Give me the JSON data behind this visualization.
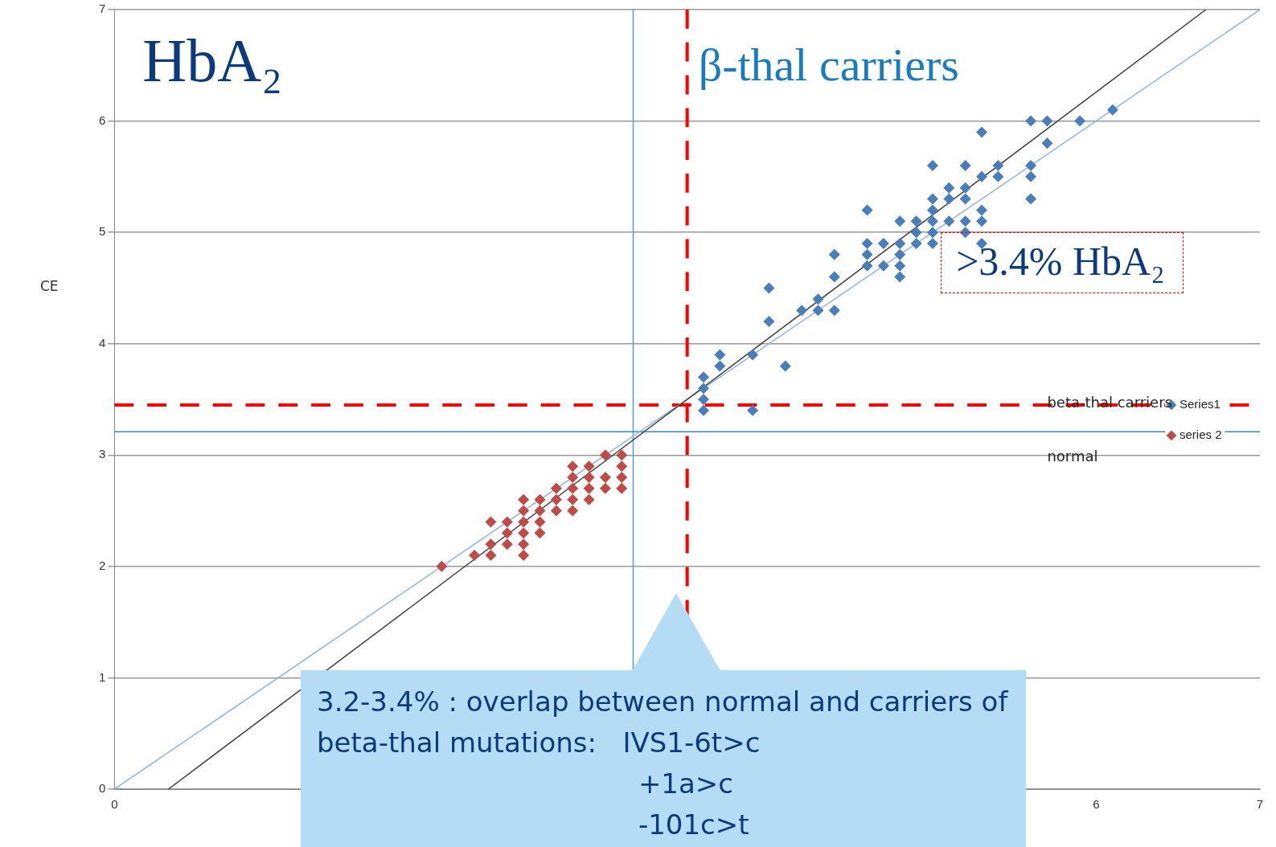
{
  "chart_data": {
    "type": "scatter",
    "title": "HbA₂",
    "ylabel": "CE",
    "xlim": [
      0,
      7
    ],
    "ylim": [
      0,
      7
    ],
    "xticks": [
      0,
      6,
      7
    ],
    "yticks": [
      0,
      1,
      2,
      3,
      4,
      5,
      6,
      7
    ],
    "grid": "y",
    "legend": "right",
    "marker": "diamond",
    "series": [
      {
        "name": "Series1",
        "color": "#4a7ebb",
        "x": [
          3.6,
          3.6,
          3.6,
          3.6,
          3.7,
          3.7,
          3.9,
          3.9,
          4.0,
          4.0,
          4.1,
          4.2,
          4.3,
          4.3,
          4.4,
          4.4,
          4.4,
          4.6,
          4.6,
          4.6,
          4.6,
          4.7,
          4.7,
          4.8,
          4.8,
          4.8,
          4.8,
          4.8,
          4.9,
          4.9,
          4.9,
          5.0,
          5.0,
          5.0,
          5.0,
          5.0,
          5.0,
          5.1,
          5.1,
          5.1,
          5.2,
          5.2,
          5.2,
          5.2,
          5.2,
          5.3,
          5.3,
          5.3,
          5.3,
          5.3,
          5.4,
          5.4,
          5.6,
          5.6,
          5.6,
          5.6,
          5.7,
          5.7,
          5.9,
          6.1
        ],
        "values": [
          3.4,
          3.5,
          3.6,
          3.7,
          3.8,
          3.9,
          3.4,
          3.9,
          4.2,
          4.5,
          3.8,
          4.3,
          4.3,
          4.4,
          4.3,
          4.6,
          4.8,
          4.7,
          4.8,
          4.9,
          5.2,
          4.7,
          4.9,
          4.6,
          4.7,
          4.8,
          4.9,
          5.1,
          4.9,
          5.0,
          5.1,
          4.9,
          5.0,
          5.1,
          5.2,
          5.3,
          5.6,
          5.1,
          5.3,
          5.4,
          5.0,
          5.1,
          5.3,
          5.4,
          5.6,
          4.9,
          5.1,
          5.2,
          5.5,
          5.9,
          5.5,
          5.6,
          5.3,
          5.5,
          5.6,
          6.0,
          5.8,
          6.0,
          6.0,
          6.1
        ]
      },
      {
        "name": "series 2",
        "color": "#be4b48",
        "x": [
          2.0,
          2.2,
          2.3,
          2.3,
          2.3,
          2.4,
          2.4,
          2.4,
          2.5,
          2.5,
          2.5,
          2.5,
          2.5,
          2.5,
          2.6,
          2.6,
          2.6,
          2.6,
          2.7,
          2.7,
          2.7,
          2.8,
          2.8,
          2.8,
          2.8,
          2.8,
          2.9,
          2.9,
          2.9,
          2.9,
          3.0,
          3.0,
          3.0,
          3.1,
          3.1,
          3.1,
          3.1
        ],
        "values": [
          2.0,
          2.1,
          2.1,
          2.2,
          2.4,
          2.2,
          2.3,
          2.4,
          2.1,
          2.2,
          2.3,
          2.4,
          2.5,
          2.6,
          2.3,
          2.4,
          2.5,
          2.6,
          2.5,
          2.6,
          2.7,
          2.5,
          2.6,
          2.7,
          2.8,
          2.9,
          2.6,
          2.7,
          2.8,
          2.9,
          2.7,
          2.8,
          3.0,
          2.7,
          2.8,
          2.9,
          3.0
        ]
      },
      {
        "type": "line",
        "color": "#404040",
        "marker": "none",
        "x": [
          0.33,
          6.67
        ],
        "values": [
          0,
          7
        ]
      },
      {
        "type": "line",
        "color": "#8fb4e0",
        "marker": "none",
        "x": [
          0,
          7
        ],
        "values": [
          0,
          7
        ]
      }
    ],
    "ref_lines": [
      {
        "axis": "x",
        "value": 3.5,
        "color": "#ff0000",
        "line_style": "dashed"
      },
      {
        "axis": "y",
        "value": 3.45,
        "color": "#ff0000",
        "line_style": "dashed"
      },
      {
        "axis": "x",
        "value": 3.17,
        "color": "#5b9bd5",
        "line_style": "solid"
      },
      {
        "axis": "y",
        "value": 3.21,
        "color": "#2e8bd0",
        "line_style": "solid"
      }
    ],
    "annotations": [
      "β-thal carriers",
      ">3.4% HbA₂",
      "beta-thal carriers",
      "normal",
      "3.2-3.4% : overlap between normal and carriers of\nbeta-thal mutations:   IVS1-6t>c\n                                     +1a>c\n                                     -101c>t"
    ]
  }
}
